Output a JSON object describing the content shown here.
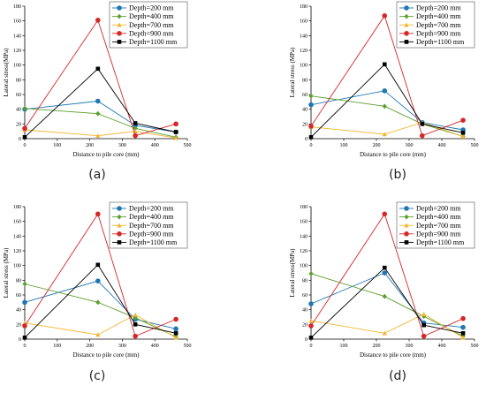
{
  "chart_data": [
    {
      "type": "line",
      "panel_label": "(a)",
      "xlabel": "Distance to pile core (mm)",
      "ylabel": "Lateral stress(MPa)",
      "xlim": [
        0,
        500
      ],
      "ylim": [
        0,
        180
      ],
      "xticks": [
        0,
        100,
        200,
        300,
        400,
        500
      ],
      "yticks": [
        0,
        20,
        40,
        60,
        80,
        100,
        120,
        140,
        160,
        180
      ],
      "legend": "top-right",
      "series": [
        {
          "name": "Depth=200 mm",
          "color": "#1f77b4",
          "marker": "circle",
          "x": [
            0,
            225,
            340,
            465
          ],
          "y": [
            40,
            51,
            18,
            9
          ]
        },
        {
          "name": "Depth=400 mm",
          "color": "#5aa02c",
          "marker": "diamond",
          "x": [
            0,
            225,
            340,
            465
          ],
          "y": [
            41,
            34,
            14,
            2
          ]
        },
        {
          "name": "Depth=700 mm",
          "color": "#f2b632",
          "marker": "triangle",
          "x": [
            0,
            225,
            340,
            465
          ],
          "y": [
            12,
            4,
            10,
            1
          ]
        },
        {
          "name": "Depth=900 mm",
          "color": "#d62728",
          "marker": "circle",
          "x": [
            0,
            225,
            340,
            465
          ],
          "y": [
            14,
            161,
            4,
            20
          ]
        },
        {
          "name": "Depth=1100 mm",
          "color": "#000000",
          "marker": "square",
          "x": [
            0,
            225,
            340,
            465
          ],
          "y": [
            2,
            95,
            21,
            9
          ]
        }
      ]
    },
    {
      "type": "line",
      "panel_label": "(b)",
      "xlabel": "Distance to pile core (mm)",
      "ylabel": "Lateral stress (MPa)",
      "xlim": [
        0,
        500
      ],
      "ylim": [
        0,
        180
      ],
      "xticks": [
        0,
        100,
        200,
        300,
        400,
        500
      ],
      "yticks": [
        0,
        20,
        40,
        60,
        80,
        100,
        120,
        140,
        160,
        180
      ],
      "legend": "top-right",
      "series": [
        {
          "name": "Depth=200 mm",
          "color": "#1f77b4",
          "marker": "circle",
          "x": [
            0,
            225,
            340,
            465
          ],
          "y": [
            46,
            65,
            22,
            12
          ]
        },
        {
          "name": "Depth=400 mm",
          "color": "#5aa02c",
          "marker": "diamond",
          "x": [
            0,
            225,
            340,
            465
          ],
          "y": [
            58,
            44,
            20,
            3
          ]
        },
        {
          "name": "Depth=700 mm",
          "color": "#f2b632",
          "marker": "triangle",
          "x": [
            0,
            225,
            340,
            465
          ],
          "y": [
            16,
            6,
            22,
            3
          ]
        },
        {
          "name": "Depth=900 mm",
          "color": "#d62728",
          "marker": "circle",
          "x": [
            0,
            225,
            340,
            465
          ],
          "y": [
            17,
            167,
            4,
            25
          ]
        },
        {
          "name": "Depth=1100 mm",
          "color": "#000000",
          "marker": "square",
          "x": [
            0,
            225,
            340,
            465
          ],
          "y": [
            2,
            101,
            20,
            8
          ]
        }
      ]
    },
    {
      "type": "line",
      "panel_label": "(c)",
      "xlabel": "Distance to pile core (mm)",
      "ylabel": "Lateral stress (MPa)",
      "xlim": [
        0,
        500
      ],
      "ylim": [
        0,
        180
      ],
      "xticks": [
        0,
        100,
        200,
        300,
        400,
        500
      ],
      "yticks": [
        0,
        20,
        40,
        60,
        80,
        100,
        120,
        140,
        160,
        180
      ],
      "legend": "top-right",
      "series": [
        {
          "name": "Depth=200 mm",
          "color": "#1f77b4",
          "marker": "circle",
          "x": [
            0,
            225,
            340,
            465
          ],
          "y": [
            50,
            79,
            27,
            14
          ]
        },
        {
          "name": "Depth=400 mm",
          "color": "#5aa02c",
          "marker": "diamond",
          "x": [
            0,
            225,
            340,
            465
          ],
          "y": [
            75,
            50,
            29,
            3
          ]
        },
        {
          "name": "Depth=700 mm",
          "color": "#f2b632",
          "marker": "triangle",
          "x": [
            0,
            225,
            340,
            465
          ],
          "y": [
            22,
            6,
            33,
            2
          ]
        },
        {
          "name": "Depth=900 mm",
          "color": "#d62728",
          "marker": "circle",
          "x": [
            0,
            225,
            340,
            465
          ],
          "y": [
            18,
            170,
            4,
            27
          ]
        },
        {
          "name": "Depth=1100 mm",
          "color": "#000000",
          "marker": "square",
          "x": [
            0,
            225,
            340,
            465
          ],
          "y": [
            2,
            101,
            20,
            8
          ]
        }
      ]
    },
    {
      "type": "line",
      "panel_label": "(d)",
      "xlabel": "Distance to pile core (mm)",
      "ylabel": "Lateral stress(MPa)",
      "xlim": [
        0,
        500
      ],
      "ylim": [
        0,
        180
      ],
      "xticks": [
        0,
        100,
        200,
        300,
        400,
        500
      ],
      "yticks": [
        0,
        20,
        40,
        60,
        80,
        100,
        120,
        140,
        160,
        180
      ],
      "legend": "top-right",
      "series": [
        {
          "name": "Depth=200 mm",
          "color": "#1f77b4",
          "marker": "circle",
          "x": [
            0,
            225,
            345,
            465
          ],
          "y": [
            48,
            90,
            22,
            16
          ]
        },
        {
          "name": "Depth=400 mm",
          "color": "#5aa02c",
          "marker": "diamond",
          "x": [
            0,
            225,
            345,
            465
          ],
          "y": [
            89,
            58,
            31,
            4
          ]
        },
        {
          "name": "Depth=700 mm",
          "color": "#f2b632",
          "marker": "triangle",
          "x": [
            0,
            225,
            345,
            465
          ],
          "y": [
            25,
            8,
            34,
            2
          ]
        },
        {
          "name": "Depth=900 mm",
          "color": "#d62728",
          "marker": "circle",
          "x": [
            0,
            225,
            345,
            465
          ],
          "y": [
            18,
            170,
            4,
            28
          ]
        },
        {
          "name": "Depth=1100 mm",
          "color": "#000000",
          "marker": "square",
          "x": [
            0,
            225,
            345,
            465
          ],
          "y": [
            2,
            97,
            19,
            8
          ]
        }
      ]
    }
  ]
}
